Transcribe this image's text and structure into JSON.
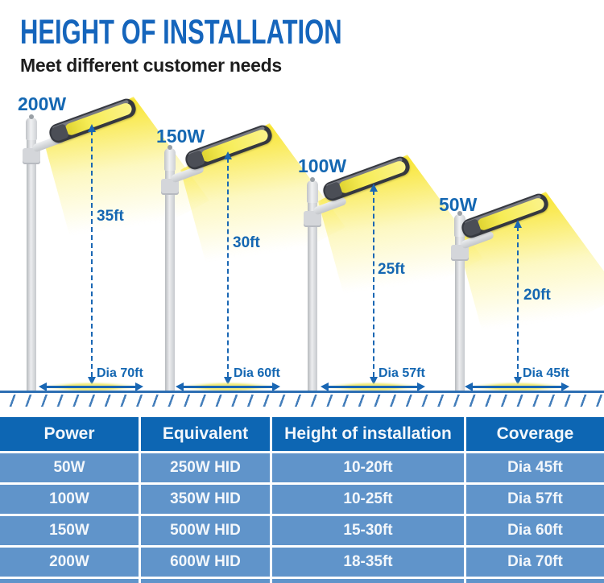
{
  "header": {
    "title": "HEIGHT OF INSTALLATION",
    "subtitle": "Meet different customer needs"
  },
  "colors": {
    "accent_blue": "#1467b2",
    "table_header_bg": "#0d66b3",
    "table_row_bg": "#6094ca",
    "ground_blue": "#2e6fb3",
    "beam_yellow": "#f6ec55",
    "lamp_body_gray": "#35383f"
  },
  "lamps": [
    {
      "power": "200W",
      "height": "35ft",
      "diameter": "Dia 70ft"
    },
    {
      "power": "150W",
      "height": "30ft",
      "diameter": "Dia 60ft"
    },
    {
      "power": "100W",
      "height": "25ft",
      "diameter": "Dia 57ft"
    },
    {
      "power": "50W",
      "height": "20ft",
      "diameter": "Dia 45ft"
    }
  ],
  "table": {
    "headers": [
      "Power",
      "Equivalent",
      "Height of installation",
      "Coverage"
    ],
    "rows": [
      [
        "50W",
        "250W HID",
        "10-20ft",
        "Dia 45ft"
      ],
      [
        "100W",
        "350W HID",
        "10-25ft",
        "Dia 57ft"
      ],
      [
        "150W",
        "500W HID",
        "15-30ft",
        "Dia 60ft"
      ],
      [
        "200W",
        "600W HID",
        "18-35ft",
        "Dia 70ft"
      ]
    ]
  }
}
